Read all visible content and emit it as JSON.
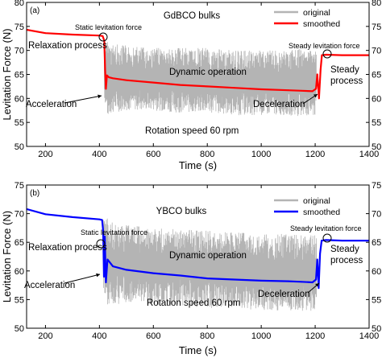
{
  "chart_data": [
    {
      "type": "line",
      "panel_label": "(a)",
      "title": "GdBCO bulks",
      "xlabel": "Time (s)",
      "ylabel": "Levitation Force (N)",
      "xlim": [
        130,
        1400
      ],
      "ylim": [
        50,
        80
      ],
      "xticks": [
        200,
        400,
        600,
        800,
        1000,
        1200,
        1400
      ],
      "yticks": [
        50,
        55,
        60,
        65,
        70,
        75,
        80
      ],
      "grid": false,
      "legend_position": "top-right",
      "legend": [
        "original",
        "smoothed"
      ],
      "series": [
        {
          "name": "original",
          "color": "#b4b4b4",
          "band_x": [
            418,
            430,
            450,
            500,
            600,
            700,
            800,
            900,
            1000,
            1100,
            1180,
            1205
          ],
          "band_low": [
            60,
            56,
            57,
            57.5,
            57.5,
            57,
            57,
            56.5,
            56.5,
            56.5,
            56,
            56
          ],
          "band_high": [
            71.5,
            72,
            71.5,
            71,
            70.5,
            70.5,
            70.5,
            70,
            70,
            70,
            70.5,
            70.5
          ]
        },
        {
          "name": "smoothed",
          "color": "#ff0000",
          "x": [
            130,
            200,
            300,
            400,
            412,
            418,
            421,
            424,
            428,
            435,
            450,
            500,
            600,
            700,
            800,
            900,
            1000,
            1100,
            1150,
            1190,
            1203,
            1208,
            1214,
            1220,
            1225,
            1240,
            1300,
            1400
          ],
          "y": [
            74.3,
            73.6,
            73.3,
            73.1,
            73.0,
            72.0,
            66,
            62,
            64.8,
            64.4,
            64.2,
            63.8,
            63.3,
            62.8,
            62.5,
            62.2,
            61.9,
            61.7,
            61.6,
            61.5,
            62,
            65,
            60,
            66,
            69,
            69.1,
            69.0,
            69.0
          ]
        }
      ],
      "annotations": [
        "Static levitation force",
        "Steady levitation force",
        "Relaxation process",
        "Dynamic operation",
        "Steady process",
        "Acceleration",
        "Deceleration",
        "Rotation speed 60 rpm"
      ]
    },
    {
      "type": "line",
      "panel_label": "(b)",
      "title": "YBCO bulks",
      "xlabel": "Time (s)",
      "ylabel": "Levitation Force (N)",
      "xlim": [
        130,
        1400
      ],
      "ylim": [
        50,
        75
      ],
      "xticks": [
        200,
        400,
        600,
        800,
        1000,
        1200,
        1400
      ],
      "yticks": [
        50,
        55,
        60,
        65,
        70,
        75
      ],
      "grid": false,
      "legend_position": "top-right",
      "legend": [
        "original",
        "smoothed"
      ],
      "series": [
        {
          "name": "original",
          "color": "#b4b4b4",
          "band_x": [
            415,
            430,
            450,
            500,
            600,
            700,
            800,
            900,
            1000,
            1100,
            1180,
            1205
          ],
          "band_low": [
            57,
            54,
            54,
            54.5,
            54,
            54,
            53.5,
            53.5,
            53,
            53,
            53,
            53
          ],
          "band_high": [
            69,
            69.2,
            68.5,
            68,
            67.5,
            67.3,
            67,
            66.8,
            66.5,
            66.5,
            66.3,
            66.3
          ]
        },
        {
          "name": "smoothed",
          "color": "#0000ff",
          "x": [
            130,
            200,
            300,
            400,
            410,
            414,
            417,
            420,
            424,
            430,
            450,
            500,
            600,
            700,
            800,
            900,
            1000,
            1100,
            1150,
            1190,
            1203,
            1208,
            1213,
            1218,
            1224,
            1240,
            1300,
            1400
          ],
          "y": [
            70.8,
            69.9,
            69.4,
            69.0,
            68.9,
            67,
            59,
            66,
            58,
            62,
            60.8,
            60.2,
            59.6,
            59.2,
            58.7,
            58.5,
            58.3,
            58.2,
            58.1,
            58.0,
            58.5,
            62,
            57,
            63,
            65.3,
            65.4,
            65.3,
            65.3
          ]
        }
      ],
      "annotations": [
        "Static levitation force",
        "Steady levitation force",
        "Relaxation process",
        "Dynamic operation",
        "Steady process",
        "Acceleration",
        "Deceleration",
        "Rotation speed 60 rpm"
      ]
    }
  ]
}
